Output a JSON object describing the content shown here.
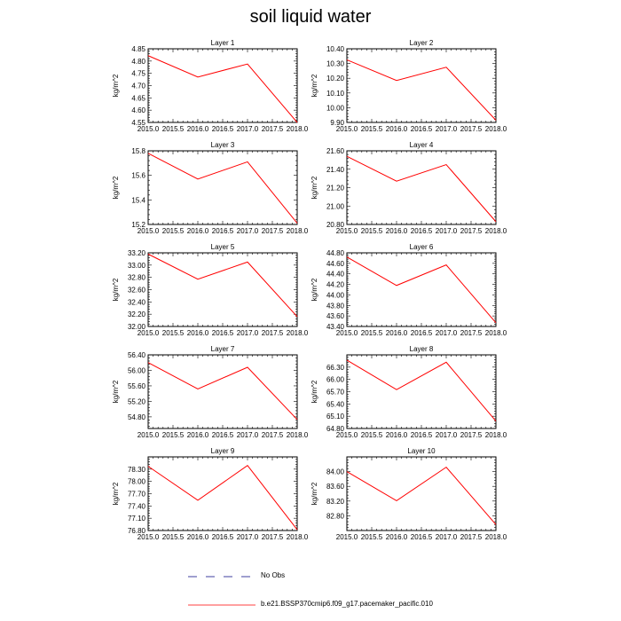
{
  "title": "soil liquid water",
  "legend": [
    {
      "label": "No Obs",
      "style": "dashed",
      "color": "#000080"
    },
    {
      "label": "b.e21.BSSP370cmip6.f09_g17.pacemaker_pacific.010",
      "style": "solid",
      "color": "#ff0000"
    }
  ],
  "chart_data": [
    {
      "type": "line",
      "title": "Layer 1",
      "xlabel": "",
      "ylabel": "kg/m^2",
      "xlim": [
        2015.0,
        2018.0
      ],
      "xticks": [
        "2015.0",
        "2015.5",
        "2016.0",
        "2016.5",
        "2017.0",
        "2017.5",
        "2018.0"
      ],
      "ylim": [
        4.55,
        4.85
      ],
      "yticks": [
        "4.55",
        "4.60",
        "4.65",
        "4.70",
        "4.75",
        "4.80",
        "4.85"
      ],
      "series": [
        {
          "name": "b.e21.BSSP370cmip6.f09_g17.pacemaker_pacific.010",
          "color": "#ff0000",
          "x": [
            2015,
            2016,
            2017,
            2018
          ],
          "y": [
            4.822,
            4.735,
            4.788,
            4.55
          ]
        }
      ]
    },
    {
      "type": "line",
      "title": "Layer 2",
      "xlabel": "",
      "ylabel": "kg/m^2",
      "xlim": [
        2015.0,
        2018.0
      ],
      "xticks": [
        "2015.0",
        "2015.5",
        "2016.0",
        "2016.5",
        "2017.0",
        "2017.5",
        "2018.0"
      ],
      "ylim": [
        9.9,
        10.4
      ],
      "yticks": [
        "9.90",
        "10.00",
        "10.10",
        "10.20",
        "10.30",
        "10.40"
      ],
      "series": [
        {
          "name": "b.e21.BSSP370cmip6.f09_g17.pacemaker_pacific.010",
          "color": "#ff0000",
          "x": [
            2015,
            2016,
            2017,
            2018
          ],
          "y": [
            10.325,
            10.185,
            10.275,
            9.915
          ]
        }
      ]
    },
    {
      "type": "line",
      "title": "Layer 3",
      "xlabel": "",
      "ylabel": "kg/m^2",
      "xlim": [
        2015.0,
        2018.0
      ],
      "xticks": [
        "2015.0",
        "2015.5",
        "2016.0",
        "2016.5",
        "2017.0",
        "2017.5",
        "2018.0"
      ],
      "ylim": [
        15.2,
        15.8
      ],
      "yticks": [
        "15.2",
        "15.4",
        "15.6",
        "15.8"
      ],
      "series": [
        {
          "name": "b.e21.BSSP370cmip6.f09_g17.pacemaker_pacific.010",
          "color": "#ff0000",
          "x": [
            2015,
            2016,
            2017,
            2018
          ],
          "y": [
            15.78,
            15.57,
            15.71,
            15.21
          ]
        }
      ]
    },
    {
      "type": "line",
      "title": "Layer 4",
      "xlabel": "",
      "ylabel": "kg/m^2",
      "xlim": [
        2015.0,
        2018.0
      ],
      "xticks": [
        "2015.0",
        "2015.5",
        "2016.0",
        "2016.5",
        "2017.0",
        "2017.5",
        "2018.0"
      ],
      "ylim": [
        20.8,
        21.6
      ],
      "yticks": [
        "20.80",
        "21.00",
        "21.20",
        "21.40",
        "21.60"
      ],
      "series": [
        {
          "name": "b.e21.BSSP370cmip6.f09_g17.pacemaker_pacific.010",
          "color": "#ff0000",
          "x": [
            2015,
            2016,
            2017,
            2018
          ],
          "y": [
            21.54,
            21.27,
            21.45,
            20.83
          ]
        }
      ]
    },
    {
      "type": "line",
      "title": "Layer 5",
      "xlabel": "",
      "ylabel": "kg/m^2",
      "xlim": [
        2015.0,
        2018.0
      ],
      "xticks": [
        "2015.0",
        "2015.5",
        "2016.0",
        "2016.5",
        "2017.0",
        "2017.5",
        "2018.0"
      ],
      "ylim": [
        32.0,
        33.2
      ],
      "yticks": [
        "32.00",
        "32.20",
        "32.40",
        "32.60",
        "32.80",
        "33.00",
        "33.20"
      ],
      "series": [
        {
          "name": "b.e21.BSSP370cmip6.f09_g17.pacemaker_pacific.010",
          "color": "#ff0000",
          "x": [
            2015,
            2016,
            2017,
            2018
          ],
          "y": [
            33.18,
            32.77,
            33.05,
            32.16
          ]
        }
      ]
    },
    {
      "type": "line",
      "title": "Layer 6",
      "xlabel": "",
      "ylabel": "kg/m^2",
      "xlim": [
        2015.0,
        2018.0
      ],
      "xticks": [
        "2015.0",
        "2015.5",
        "2016.0",
        "2016.5",
        "2017.0",
        "2017.5",
        "2018.0"
      ],
      "ylim": [
        43.4,
        44.8
      ],
      "yticks": [
        "43.40",
        "43.60",
        "43.80",
        "44.00",
        "44.20",
        "44.40",
        "44.60",
        "44.80"
      ],
      "series": [
        {
          "name": "b.e21.BSSP370cmip6.f09_g17.pacemaker_pacific.010",
          "color": "#ff0000",
          "x": [
            2015,
            2016,
            2017,
            2018
          ],
          "y": [
            44.72,
            44.18,
            44.57,
            43.47
          ]
        }
      ]
    },
    {
      "type": "line",
      "title": "Layer 7",
      "xlabel": "",
      "ylabel": "kg/m^2",
      "xlim": [
        2015.0,
        2018.0
      ],
      "xticks": [
        "2015.0",
        "2015.5",
        "2016.0",
        "2016.5",
        "2017.0",
        "2017.5",
        "2018.0"
      ],
      "ylim": [
        54.5,
        56.4
      ],
      "yticks": [
        "54.80",
        "55.20",
        "55.60",
        "56.00",
        "56.40"
      ],
      "series": [
        {
          "name": "b.e21.BSSP370cmip6.f09_g17.pacemaker_pacific.010",
          "color": "#ff0000",
          "x": [
            2015,
            2016,
            2017,
            2018
          ],
          "y": [
            56.2,
            55.52,
            56.08,
            54.73
          ]
        }
      ]
    },
    {
      "type": "line",
      "title": "Layer 8",
      "xlabel": "",
      "ylabel": "kg/m^2",
      "xlim": [
        2015.0,
        2018.0
      ],
      "xticks": [
        "2015.0",
        "2015.5",
        "2016.0",
        "2016.5",
        "2017.0",
        "2017.5",
        "2018.0"
      ],
      "ylim": [
        64.8,
        66.6
      ],
      "yticks": [
        "64.80",
        "65.10",
        "65.40",
        "65.70",
        "66.00",
        "66.30"
      ],
      "series": [
        {
          "name": "b.e21.BSSP370cmip6.f09_g17.pacemaker_pacific.010",
          "color": "#ff0000",
          "x": [
            2015,
            2016,
            2017,
            2018
          ],
          "y": [
            66.47,
            65.75,
            66.42,
            64.98
          ]
        }
      ]
    },
    {
      "type": "line",
      "title": "Layer 9",
      "xlabel": "",
      "ylabel": "kg/m^2",
      "xlim": [
        2015.0,
        2018.0
      ],
      "xticks": [
        "2015.0",
        "2015.5",
        "2016.0",
        "2016.5",
        "2017.0",
        "2017.5",
        "2018.0"
      ],
      "ylim": [
        76.8,
        78.6
      ],
      "yticks": [
        "76.80",
        "77.10",
        "77.40",
        "77.70",
        "78.00",
        "78.30"
      ],
      "series": [
        {
          "name": "b.e21.BSSP370cmip6.f09_g17.pacemaker_pacific.010",
          "color": "#ff0000",
          "x": [
            2015,
            2016,
            2017,
            2018
          ],
          "y": [
            78.37,
            77.54,
            78.39,
            76.82
          ]
        }
      ]
    },
    {
      "type": "line",
      "title": "Layer 10",
      "xlabel": "",
      "ylabel": "kg/m^2",
      "xlim": [
        2015.0,
        2018.0
      ],
      "xticks": [
        "2015.0",
        "2015.5",
        "2016.0",
        "2016.5",
        "2017.0",
        "2017.5",
        "2018.0"
      ],
      "ylim": [
        82.4,
        84.4
      ],
      "yticks": [
        "82.80",
        "83.20",
        "83.60",
        "84.00"
      ],
      "series": [
        {
          "name": "b.e21.BSSP370cmip6.f09_g17.pacemaker_pacific.010",
          "color": "#ff0000",
          "x": [
            2015,
            2016,
            2017,
            2018
          ],
          "y": [
            84.0,
            83.21,
            84.12,
            82.56
          ]
        }
      ]
    }
  ]
}
